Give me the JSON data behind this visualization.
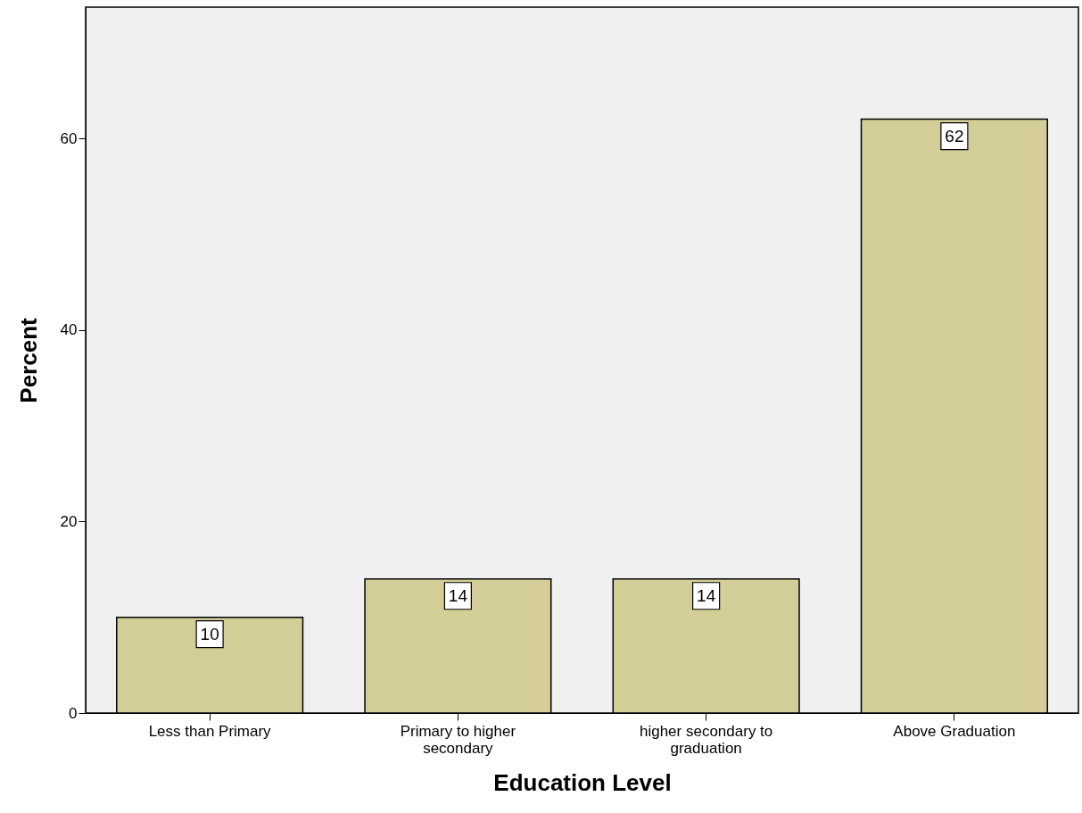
{
  "chart_data": {
    "type": "bar",
    "xlabel": "Education Level",
    "ylabel": "Percent",
    "categories": [
      "Less than Primary",
      "Primary to higher secondary",
      "higher secondary to graduation",
      "Above Graduation"
    ],
    "values": [
      10,
      14,
      14,
      62
    ],
    "color": "#d3ce97",
    "ylim": [
      0,
      73.7
    ],
    "yticks": [
      0,
      20,
      40,
      60
    ],
    "grid": false,
    "data_labels": true
  }
}
